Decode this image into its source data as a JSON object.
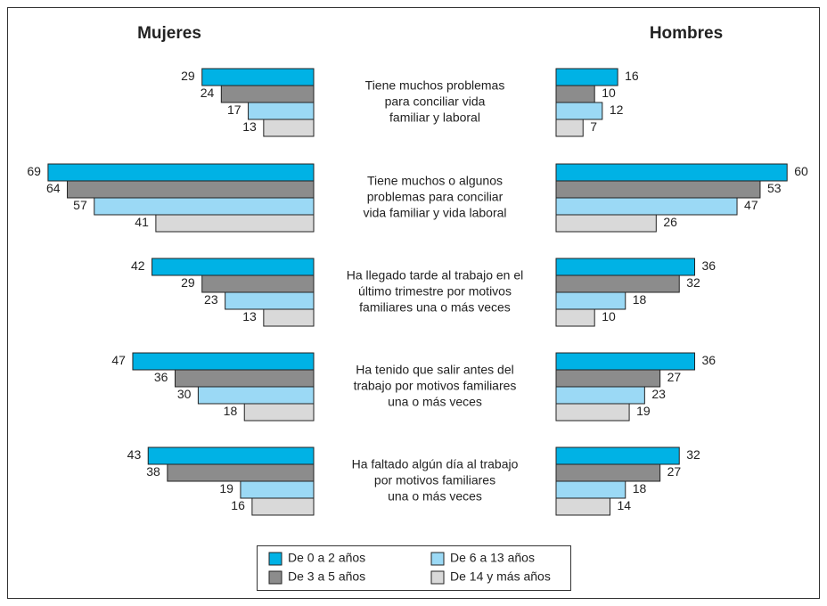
{
  "chart_data": {
    "type": "bar",
    "categories": [
      [
        "Tiene muchos problemas",
        "para conciliar vida",
        "familiar y laboral"
      ],
      [
        "Tiene muchos o algunos",
        "problemas para conciliar",
        "vida familiar y vida laboral"
      ],
      [
        "Ha llegado tarde al trabajo en el",
        "último trimestre por motivos",
        "familiares una o más veces"
      ],
      [
        "Ha tenido que salir antes del",
        "trabajo por motivos familiares",
        "una o más veces"
      ],
      [
        "Ha faltado algún día al trabajo",
        "por motivos familiares",
        "una o más veces"
      ]
    ],
    "series": [
      {
        "name": "De 0 a 2 años",
        "color": "#00b2e5"
      },
      {
        "name": "De 3 a 5 años",
        "color": "#8c8c8c"
      },
      {
        "name": "De 6 a 13 años",
        "color": "#9bd9f5"
      },
      {
        "name": "De 14 y más años",
        "color": "#d9d9d9"
      }
    ],
    "panels": [
      {
        "title": "Mujeres",
        "values": [
          [
            29,
            69,
            42,
            47,
            43
          ],
          [
            24,
            64,
            29,
            36,
            38
          ],
          [
            17,
            57,
            23,
            30,
            19
          ],
          [
            13,
            41,
            13,
            18,
            16
          ]
        ]
      },
      {
        "title": "Hombres",
        "values": [
          [
            16,
            60,
            36,
            36,
            32
          ],
          [
            10,
            53,
            32,
            27,
            27
          ],
          [
            12,
            47,
            18,
            23,
            18
          ],
          [
            7,
            26,
            10,
            19,
            14
          ]
        ]
      }
    ]
  }
}
